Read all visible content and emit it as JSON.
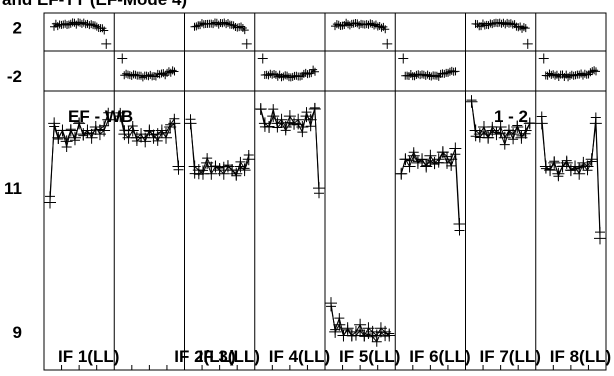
{
  "header_text": "and EF-TT (EF-Mode 4)",
  "chart_data": {
    "type": "scatter",
    "baseline_label": "EF - WB",
    "pair_label": "1 - 2",
    "rows": [
      {
        "name": "phase",
        "ticks": [
          {
            "value": 2,
            "label": "2"
          },
          {
            "value": -2,
            "label": "-2"
          }
        ],
        "ylim": [
          -3.2,
          3.2
        ]
      },
      {
        "name": "amplitude",
        "ticks": [
          {
            "value": 11,
            "label": "11"
          },
          {
            "value": 9,
            "label": "9"
          }
        ],
        "ylim": [
          8.47,
          12.35
        ]
      }
    ],
    "panels": [
      {
        "label": "IF 1(LL)",
        "phase": 2.3,
        "amp": [
          10.8,
          11.9,
          11.7,
          11.8,
          11.65,
          11.8,
          11.7,
          11.9,
          11.75,
          11.8,
          11.7,
          11.85,
          11.75,
          11.8,
          11.95
        ]
      },
      {
        "label": "IF 2(LL)",
        "phase": -2.0,
        "amp": [
          12.0,
          11.75,
          11.7,
          11.8,
          11.7,
          11.75,
          11.65,
          11.8,
          11.7,
          11.75,
          11.8,
          11.7,
          11.85,
          11.9,
          11.3
        ]
      },
      {
        "label": "IF 3(LL)",
        "phase": 2.3,
        "amp": [
          11.9,
          11.3,
          11.25,
          11.2,
          11.35,
          11.2,
          11.3,
          11.25,
          11.2,
          11.3,
          11.25,
          11.2,
          11.3,
          11.25,
          11.4
        ]
      },
      {
        "label": "IF 4(LL)",
        "phase": -2.0,
        "amp": [
          12.1,
          11.9,
          11.85,
          12.0,
          11.9,
          11.95,
          11.85,
          12.0,
          11.9,
          11.95,
          11.85,
          12.0,
          11.95,
          12.1,
          11.0
        ]
      },
      {
        "label": "IF 5(LL)",
        "phase": 2.3,
        "amp": [
          9.4,
          9.0,
          9.1,
          8.95,
          9.05,
          8.95,
          9.0,
          9.1,
          8.95,
          9.05,
          9.0,
          8.95,
          9.05,
          9.0,
          8.95
        ]
      },
      {
        "label": "IF 6(LL)",
        "phase": -2.0,
        "amp": [
          11.2,
          11.4,
          11.3,
          11.45,
          11.35,
          11.4,
          11.3,
          11.45,
          11.35,
          11.4,
          11.5,
          11.35,
          11.4,
          11.55,
          10.5
        ]
      },
      {
        "label": "IF 7(LL)",
        "phase": 2.3,
        "amp": [
          12.2,
          11.8,
          11.75,
          11.85,
          11.7,
          11.8,
          11.75,
          11.85,
          11.7,
          11.8,
          11.75,
          11.85,
          11.7,
          11.8,
          11.9
        ]
      },
      {
        "label": "IF 8(LL)",
        "phase": -2.0,
        "amp": [
          11.9,
          11.3,
          11.25,
          11.35,
          11.2,
          11.3,
          11.35,
          11.25,
          11.3,
          11.2,
          11.35,
          11.3,
          11.4,
          11.9,
          10.3
        ]
      }
    ]
  }
}
